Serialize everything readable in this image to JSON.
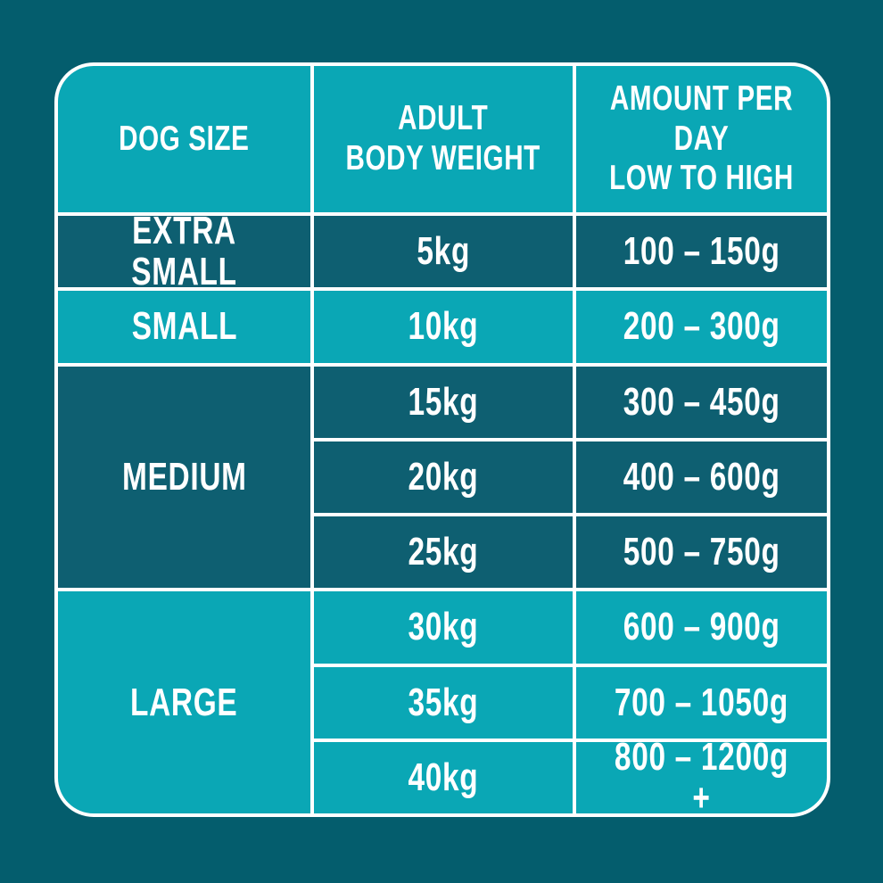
{
  "colors": {
    "background": "#045d6d",
    "cell_dark": "#0e5f71",
    "cell_light": "#0aa7b5",
    "border": "#ffffff",
    "text": "#ffffff"
  },
  "table": {
    "headers": {
      "dog_size": "DOG SIZE",
      "body_weight": "ADULT\nBODY WEIGHT",
      "amount": "AMOUNT PER DAY\nLOW TO HIGH"
    },
    "groups": [
      {
        "size": "EXTRA SMALL",
        "rows": [
          {
            "weight": "5kg",
            "amount": "100 – 150g"
          }
        ]
      },
      {
        "size": "SMALL",
        "rows": [
          {
            "weight": "10kg",
            "amount": "200 – 300g"
          }
        ]
      },
      {
        "size": "MEDIUM",
        "rows": [
          {
            "weight": "15kg",
            "amount": "300 – 450g"
          },
          {
            "weight": "20kg",
            "amount": "400 – 600g"
          },
          {
            "weight": "25kg",
            "amount": "500 – 750g"
          }
        ]
      },
      {
        "size": "LARGE",
        "rows": [
          {
            "weight": "30kg",
            "amount": "600 – 900g"
          },
          {
            "weight": "35kg",
            "amount": "700 – 1050g"
          },
          {
            "weight": "40kg",
            "amount": "800 – 1200g +"
          }
        ]
      }
    ]
  },
  "chart_data": {
    "type": "table",
    "title": "Dog feeding guide",
    "columns": [
      "DOG SIZE",
      "ADULT BODY WEIGHT",
      "AMOUNT PER DAY LOW TO HIGH"
    ],
    "rows": [
      [
        "EXTRA SMALL",
        "5kg",
        "100 – 150g"
      ],
      [
        "SMALL",
        "10kg",
        "200 – 300g"
      ],
      [
        "MEDIUM",
        "15kg",
        "300 – 450g"
      ],
      [
        "MEDIUM",
        "20kg",
        "400 – 600g"
      ],
      [
        "MEDIUM",
        "25kg",
        "500 – 750g"
      ],
      [
        "LARGE",
        "30kg",
        "600 – 900g"
      ],
      [
        "LARGE",
        "35kg",
        "700 – 1050g"
      ],
      [
        "LARGE",
        "40kg",
        "800 – 1200g +"
      ]
    ]
  }
}
